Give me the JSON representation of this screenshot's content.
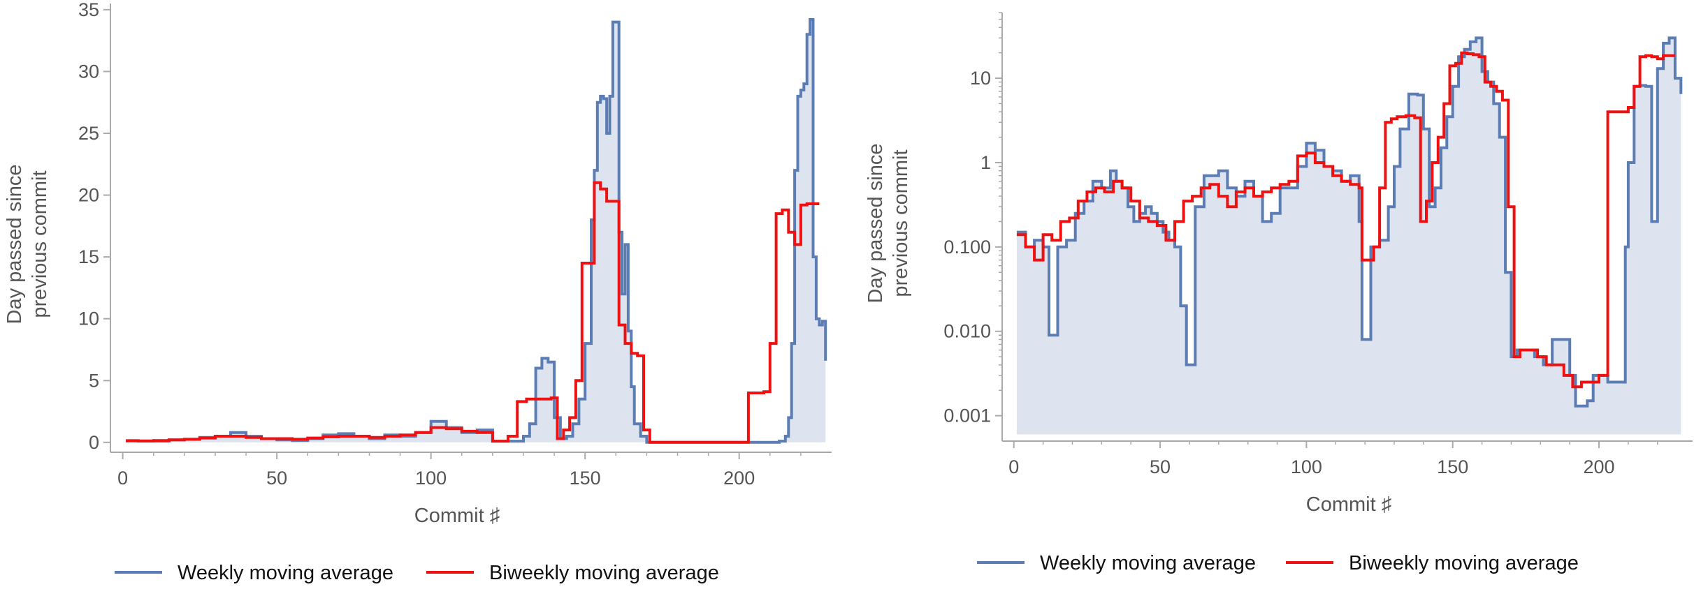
{
  "chart_data": [
    {
      "type": "line",
      "title": "",
      "xlabel": "Commit ♯",
      "ylabel_lines": [
        "Day passed since",
        "previous commit"
      ],
      "xlim": [
        -4,
        230
      ],
      "ylim": [
        -0.8,
        35.5
      ],
      "yscale": "linear",
      "xticks": [
        0,
        50,
        100,
        150,
        200
      ],
      "xtick_labels": [
        "0",
        "50",
        "100",
        "150",
        "200"
      ],
      "yticks": [
        0,
        5,
        10,
        15,
        20,
        25,
        30,
        35
      ],
      "ytick_labels": [
        "0",
        "5",
        "10",
        "15",
        "20",
        "25",
        "30",
        "35"
      ],
      "grid": false,
      "legend_position": "bottom",
      "series": [
        {
          "name": "Weekly moving average",
          "color": "#5b7db3",
          "fill": "#dde4ef",
          "x": [
            1,
            5,
            10,
            15,
            20,
            25,
            30,
            35,
            40,
            45,
            50,
            55,
            60,
            65,
            70,
            75,
            80,
            85,
            90,
            95,
            100,
            105,
            110,
            115,
            120,
            125,
            130,
            132,
            134,
            136,
            138,
            140,
            142,
            144,
            146,
            148,
            150,
            152,
            153,
            154,
            155,
            156,
            157,
            158,
            159,
            160,
            161,
            162,
            163,
            164,
            165,
            166,
            168,
            170,
            175,
            180,
            185,
            190,
            195,
            200,
            205,
            207,
            209,
            211,
            213,
            215,
            216,
            217,
            218,
            219,
            220,
            221,
            222,
            223,
            224,
            225,
            226,
            227,
            228
          ],
          "y": [
            0.15,
            0.1,
            0.1,
            0.2,
            0.25,
            0.4,
            0.5,
            0.8,
            0.5,
            0.3,
            0.2,
            0.15,
            0.3,
            0.6,
            0.7,
            0.5,
            0.3,
            0.6,
            0.5,
            0.8,
            1.7,
            1.2,
            0.8,
            1.0,
            0.1,
            0.1,
            0.5,
            1.5,
            6.0,
            6.8,
            6.5,
            2.0,
            0.3,
            0.5,
            1.5,
            3.5,
            8.0,
            18.0,
            22.0,
            27.5,
            28.0,
            27.8,
            25.0,
            28.0,
            34.0,
            34.0,
            17.0,
            12.0,
            16.0,
            9.0,
            4.5,
            1.5,
            0.5,
            0.01,
            0.01,
            0.01,
            0.01,
            0.01,
            0.01,
            0.01,
            0.01,
            0.01,
            0.01,
            0.01,
            0.1,
            0.5,
            2.0,
            8.0,
            22.0,
            28.0,
            28.5,
            29.0,
            33.0,
            34.2,
            15.0,
            10.0,
            9.5,
            9.8,
            6.6
          ]
        },
        {
          "name": "Biweekly moving average",
          "color": "#ee1111",
          "x": [
            1,
            5,
            10,
            15,
            20,
            25,
            30,
            35,
            40,
            45,
            50,
            55,
            60,
            65,
            70,
            75,
            80,
            85,
            90,
            95,
            100,
            105,
            110,
            115,
            120,
            122,
            125,
            128,
            131,
            134,
            137,
            139,
            141,
            143,
            145,
            147,
            149,
            151,
            153,
            155,
            157,
            159,
            161,
            163,
            165,
            167,
            169,
            171,
            175,
            180,
            185,
            190,
            195,
            200,
            203,
            206,
            208,
            210,
            212,
            214,
            216,
            218,
            220,
            222,
            224,
            226
          ],
          "y": [
            0.12,
            0.12,
            0.15,
            0.2,
            0.25,
            0.35,
            0.5,
            0.5,
            0.4,
            0.3,
            0.3,
            0.25,
            0.35,
            0.45,
            0.5,
            0.5,
            0.4,
            0.5,
            0.6,
            0.8,
            1.2,
            1.1,
            0.9,
            0.8,
            0.1,
            0.1,
            0.5,
            3.3,
            3.5,
            3.5,
            3.5,
            3.6,
            0.3,
            1.0,
            2.0,
            5.0,
            14.5,
            14.5,
            21.0,
            20.5,
            19.5,
            19.5,
            9.5,
            8.0,
            7.2,
            7.0,
            1.0,
            0.01,
            0.01,
            0.01,
            0.01,
            0.01,
            0.01,
            0.01,
            4.0,
            4.0,
            4.1,
            8.0,
            18.5,
            18.8,
            17.0,
            16.0,
            19.2,
            19.3,
            19.3,
            19.3
          ]
        }
      ]
    },
    {
      "type": "line",
      "title": "",
      "xlabel": "Commit ♯",
      "ylabel_lines": [
        "Day passed since",
        "previous commit"
      ],
      "xlim": [
        -4,
        232
      ],
      "ylim": [
        0.0005,
        60
      ],
      "yscale": "log",
      "xticks": [
        0,
        50,
        100,
        150,
        200
      ],
      "xtick_labels": [
        "0",
        "50",
        "100",
        "150",
        "200"
      ],
      "yticks": [
        0.001,
        0.01,
        0.1,
        1,
        10
      ],
      "ytick_labels": [
        "0.001",
        "0.010",
        "0.100",
        "1",
        "10"
      ],
      "grid": false,
      "legend_position": "bottom",
      "series": [
        {
          "name": "Weekly moving average",
          "color": "#5b7db3",
          "fill": "#dde4ef",
          "x": [
            1,
            4,
            7,
            10,
            12,
            13,
            15,
            18,
            21,
            24,
            27,
            30,
            33,
            35,
            37,
            39,
            41,
            43,
            45,
            47,
            49,
            51,
            53,
            55,
            57,
            59,
            60,
            62,
            65,
            68,
            70,
            73,
            76,
            79,
            82,
            85,
            88,
            91,
            94,
            97,
            100,
            103,
            106,
            109,
            112,
            115,
            118,
            119,
            120,
            122,
            125,
            128,
            130,
            132,
            135,
            138,
            140,
            142,
            144,
            146,
            148,
            150,
            152,
            154,
            156,
            158,
            160,
            162,
            164,
            166,
            168,
            170,
            172,
            175,
            178,
            181,
            184,
            187,
            190,
            192,
            194,
            196,
            198,
            200,
            203,
            206,
            209,
            210,
            212,
            214,
            216,
            218,
            220,
            222,
            224,
            226,
            228
          ],
          "y": [
            0.15,
            0.1,
            0.12,
            0.1,
            0.009,
            0.009,
            0.1,
            0.12,
            0.25,
            0.35,
            0.6,
            0.5,
            0.8,
            0.6,
            0.5,
            0.3,
            0.2,
            0.25,
            0.3,
            0.25,
            0.2,
            0.15,
            0.12,
            0.1,
            0.02,
            0.004,
            0.004,
            0.3,
            0.7,
            0.7,
            0.8,
            0.5,
            0.4,
            0.6,
            0.4,
            0.2,
            0.25,
            0.5,
            0.5,
            0.9,
            1.7,
            1.4,
            0.9,
            0.8,
            0.6,
            0.7,
            0.2,
            0.008,
            0.008,
            0.1,
            0.12,
            0.3,
            0.9,
            2.5,
            6.5,
            6.3,
            2.5,
            0.3,
            0.5,
            1.5,
            3.5,
            8.0,
            18.0,
            22.0,
            27.0,
            30.0,
            12.0,
            9.0,
            5.0,
            2.0,
            0.05,
            0.005,
            0.006,
            0.006,
            0.005,
            0.004,
            0.008,
            0.008,
            0.003,
            0.0013,
            0.0013,
            0.0015,
            0.003,
            0.003,
            0.0025,
            0.0025,
            0.1,
            1.0,
            8.0,
            8.2,
            8.0,
            0.2,
            13.0,
            26.0,
            30.0,
            10.0,
            6.5
          ]
        },
        {
          "name": "Biweekly moving average",
          "color": "#ee1111",
          "x": [
            1,
            4,
            7,
            10,
            13,
            16,
            19,
            22,
            25,
            28,
            31,
            34,
            37,
            40,
            43,
            46,
            49,
            52,
            55,
            58,
            61,
            64,
            67,
            70,
            73,
            76,
            79,
            82,
            85,
            88,
            91,
            94,
            97,
            100,
            103,
            106,
            109,
            112,
            115,
            118,
            119,
            121,
            123,
            125,
            127,
            129,
            131,
            134,
            137,
            139,
            141,
            143,
            145,
            147,
            149,
            151,
            153,
            155,
            157,
            159,
            161,
            163,
            165,
            167,
            169,
            171,
            173,
            176,
            179,
            182,
            185,
            188,
            191,
            194,
            197,
            200,
            203,
            206,
            208,
            210,
            212,
            214,
            216,
            218,
            220,
            222,
            224,
            226
          ],
          "y": [
            0.14,
            0.1,
            0.07,
            0.14,
            0.12,
            0.2,
            0.22,
            0.35,
            0.45,
            0.5,
            0.45,
            0.6,
            0.5,
            0.35,
            0.22,
            0.2,
            0.18,
            0.12,
            0.2,
            0.35,
            0.4,
            0.5,
            0.55,
            0.4,
            0.3,
            0.45,
            0.5,
            0.4,
            0.45,
            0.5,
            0.55,
            0.6,
            1.2,
            1.3,
            1.0,
            0.9,
            0.7,
            0.6,
            0.55,
            0.5,
            0.07,
            0.07,
            0.1,
            0.5,
            3.0,
            3.3,
            3.5,
            3.6,
            3.4,
            0.2,
            0.35,
            1.0,
            2.0,
            5.0,
            14.0,
            15.0,
            20.0,
            19.5,
            19.0,
            18.0,
            9.0,
            8.0,
            7.0,
            5.5,
            0.3,
            0.005,
            0.006,
            0.006,
            0.005,
            0.004,
            0.004,
            0.003,
            0.0022,
            0.0025,
            0.0025,
            0.003,
            4.0,
            4.0,
            4.0,
            4.5,
            8.0,
            18.0,
            18.5,
            18.0,
            17.0,
            18.5,
            18.5,
            18.5
          ]
        }
      ]
    }
  ]
}
